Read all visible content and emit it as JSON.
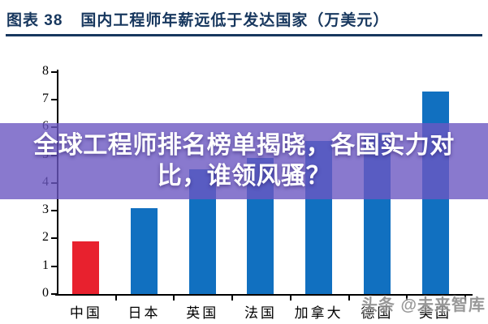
{
  "header": {
    "label": "图表 38",
    "title": "国内工程师年薪远低于发达国家（万美元）"
  },
  "overlay_banner": {
    "line1": "全球工程师排名榜单揭晓，各国实力对",
    "line2": "比，谁领风骚？"
  },
  "watermark": {
    "text": "头条 @未来智库"
  },
  "colors": {
    "title_navy": "#17375e",
    "bar_blue": "#1170c0",
    "bar_red": "#e8212e",
    "overlay_purple": "#6b58c2",
    "axis": "#000000"
  },
  "chart_data": {
    "type": "bar",
    "title": "国内工程师年薪远低于发达国家（万美元）",
    "categories": [
      "中国",
      "日本",
      "英国",
      "法国",
      "加拿大",
      "德国",
      "美国"
    ],
    "values": [
      1.9,
      3.1,
      4.5,
      4.9,
      5.5,
      5.8,
      7.3
    ],
    "bar_colors": [
      "#e8212e",
      "#1170c0",
      "#1170c0",
      "#1170c0",
      "#1170c0",
      "#1170c0",
      "#1170c0"
    ],
    "xlabel": "",
    "ylabel": "",
    "ylim": [
      0,
      8
    ],
    "yticks": [
      0,
      1,
      2,
      3,
      4,
      5,
      6,
      7,
      8
    ],
    "grid": false,
    "legend": "none"
  }
}
